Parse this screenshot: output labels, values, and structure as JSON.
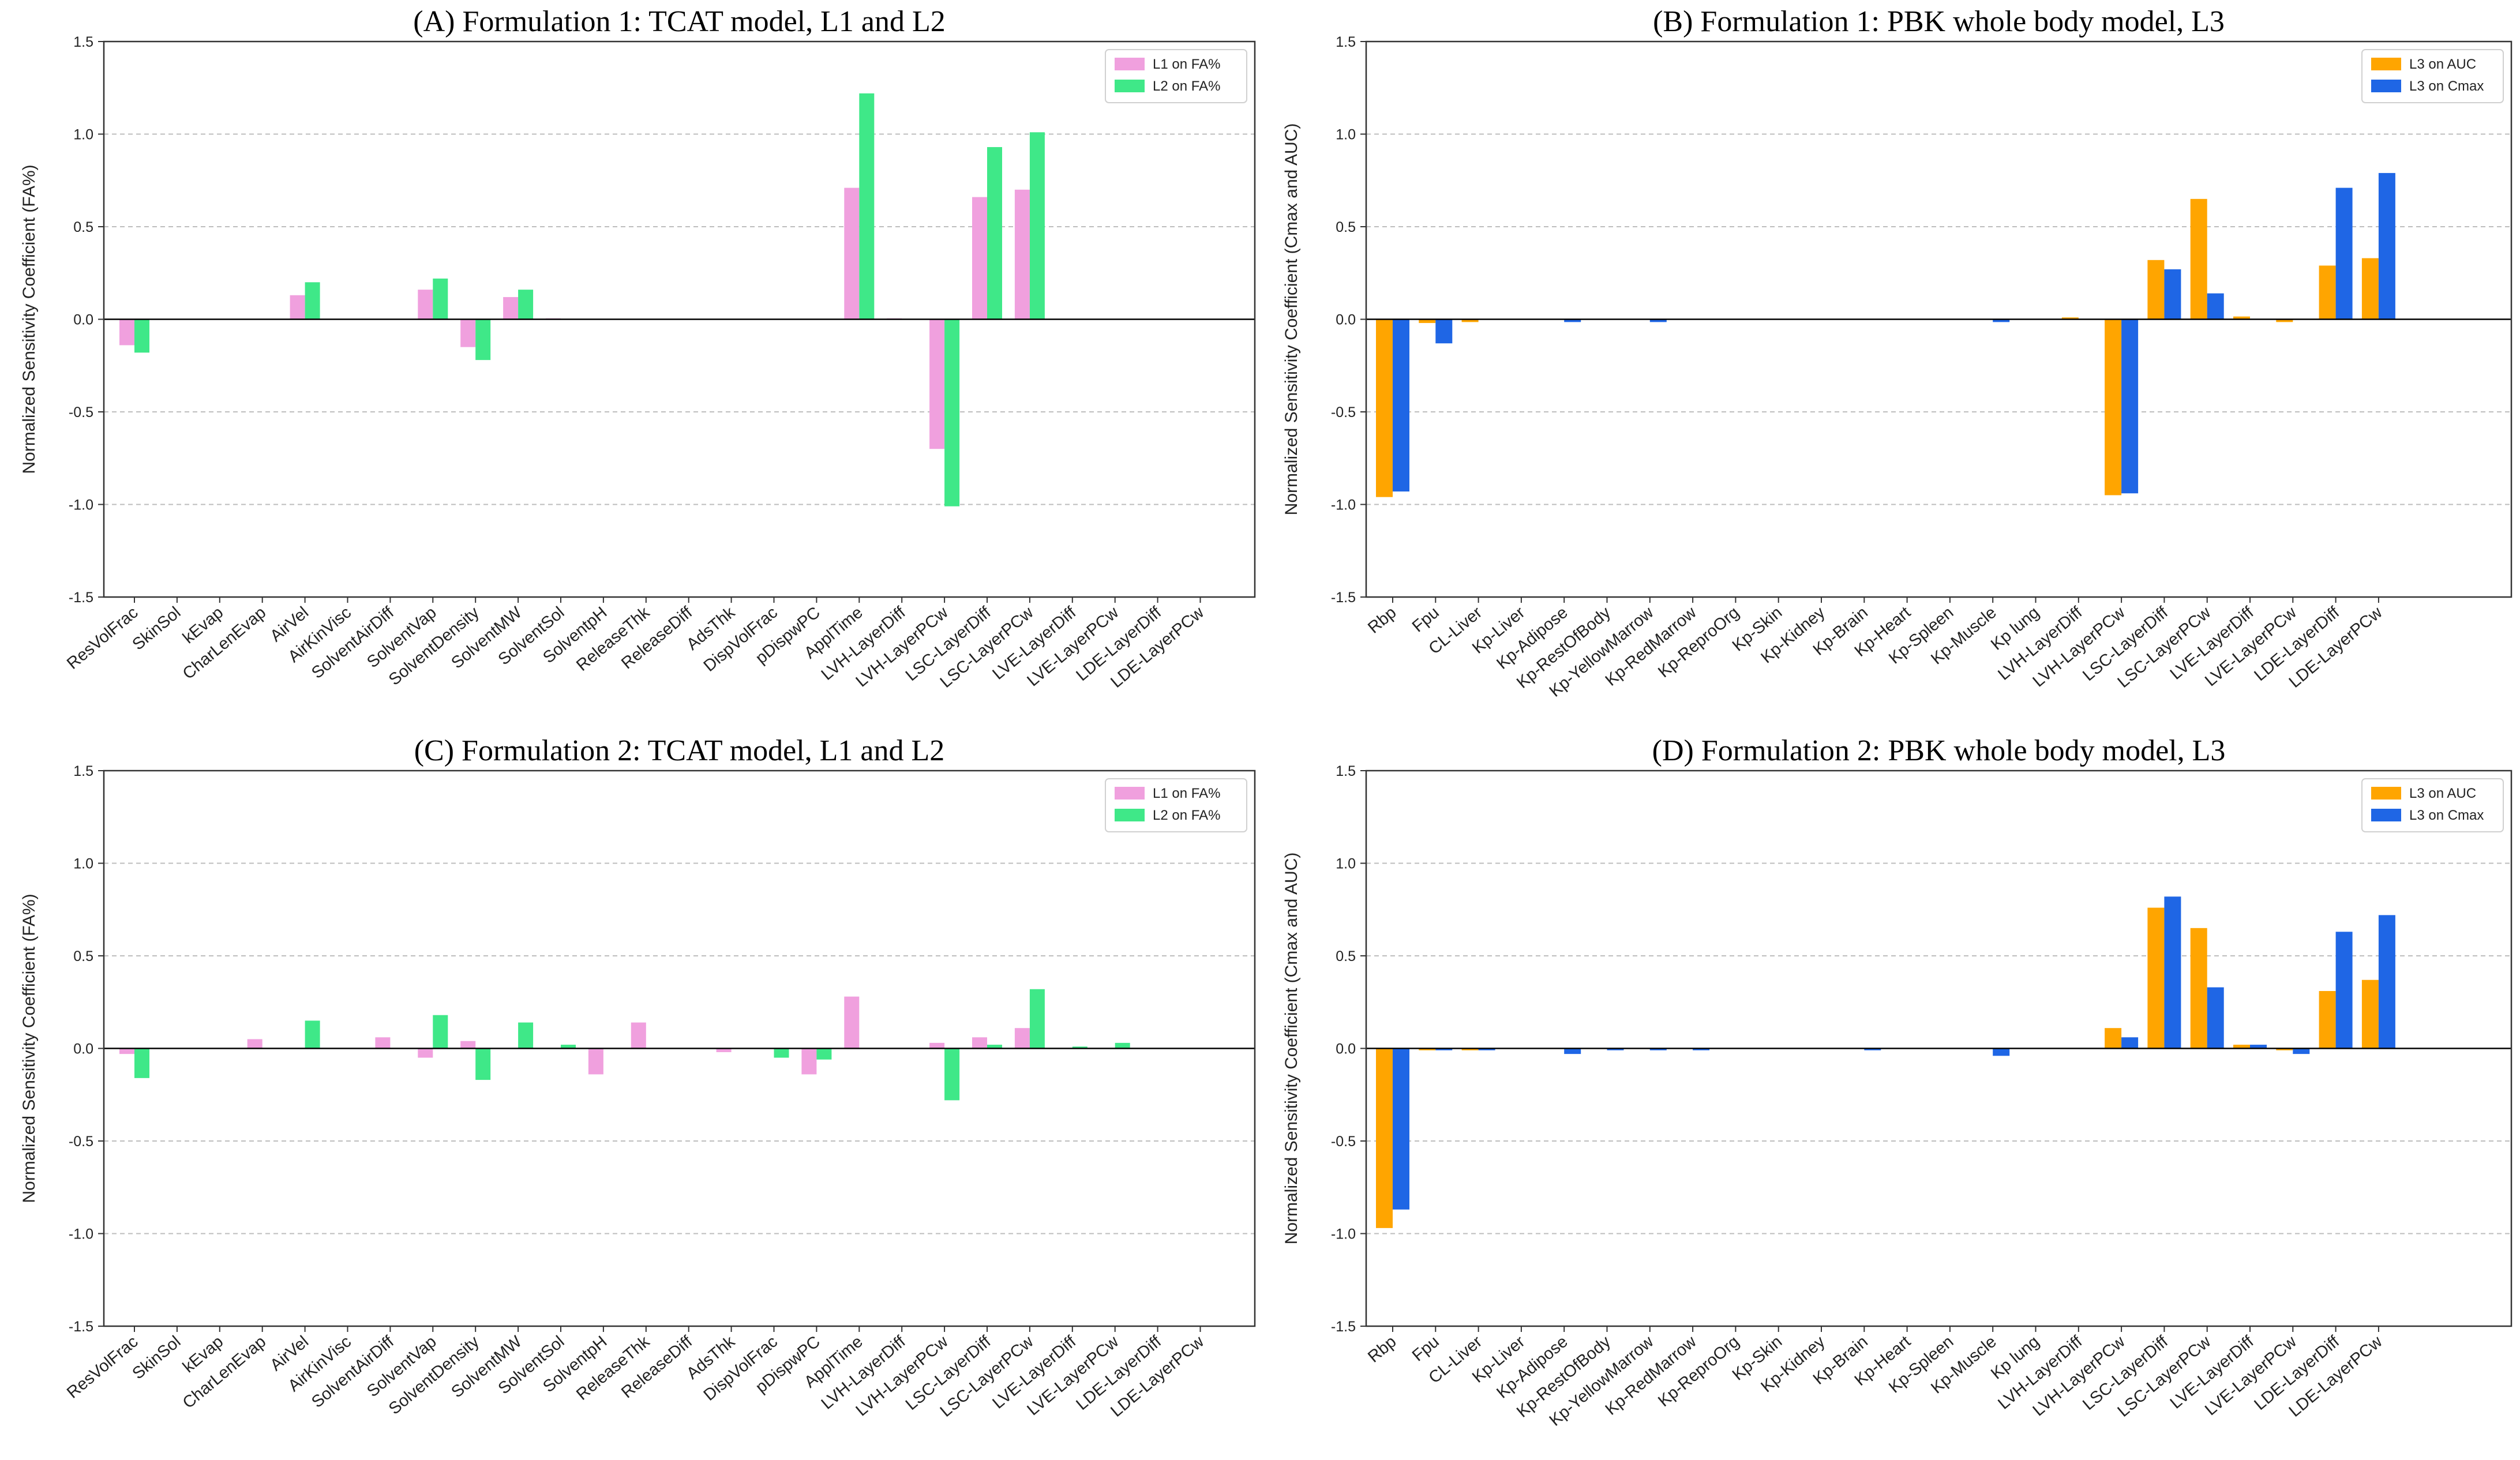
{
  "colors": {
    "l1": "#f0a0de",
    "l2": "#3fe888",
    "auc": "#ffa500",
    "cmax": "#1f66e5",
    "grid": "#bdbdbd",
    "zero": "#000000"
  },
  "chart_data": [
    {
      "type": "bar",
      "title": "(A) Formulation 1: TCAT model, L1 and L2",
      "ylabel": "Normalized Sensitivity Coefficient (FA%)",
      "ylim": [
        -1.5,
        1.5
      ],
      "yticks": [
        "-1.5",
        "-1.0",
        "-0.5",
        "0.0",
        "0.5",
        "1.0",
        "1.5"
      ],
      "legend_position": "top-right",
      "categories": [
        "ResVolFrac",
        "SkinSol",
        "kEvap",
        "CharLenEvap",
        "AirVel",
        "AirKinVisc",
        "SolventAirDiff",
        "SolventVap",
        "SolventDensity",
        "SolventMW",
        "SolventSol",
        "SolventpH",
        "ReleaseThk",
        "ReleaseDiff",
        "AdsThk",
        "DispVolFrac",
        "pDispwPC",
        "ApplTime",
        "LVH-LayerDiff",
        "LVH-LayerPCw",
        "LSC-LayerDiff",
        "LSC-LayerPCw",
        "LVE-LayerDiff",
        "LVE-LayerPCw",
        "LDE-LayerDiff",
        "LDE-LayerPCw"
      ],
      "series": [
        {
          "name": "L1 on FA%",
          "color_key": "l1",
          "values": [
            -0.14,
            0,
            0,
            0,
            0.13,
            0,
            0,
            0.16,
            -0.15,
            0.12,
            0.005,
            0,
            0,
            0,
            0,
            0,
            0,
            0.71,
            0.005,
            -0.7,
            0.66,
            0.7,
            0,
            0,
            0,
            0
          ]
        },
        {
          "name": "L2 on FA%",
          "color_key": "l2",
          "values": [
            -0.18,
            0,
            0,
            0,
            0.2,
            0,
            0,
            0.22,
            -0.22,
            0.16,
            0,
            0,
            0,
            0,
            0,
            0,
            0,
            1.22,
            0,
            -1.01,
            0.93,
            1.01,
            0,
            0,
            0,
            0
          ]
        }
      ]
    },
    {
      "type": "bar",
      "title": "(B) Formulation 1: PBK whole body model, L3",
      "ylabel": "Normalized Sensitivity Coefficient (Cmax and AUC)",
      "ylim": [
        -1.5,
        1.5
      ],
      "yticks": [
        "-1.5",
        "-1.0",
        "-0.5",
        "0.0",
        "0.5",
        "1.0",
        "1.5"
      ],
      "legend_position": "top-right",
      "categories": [
        "Rbp",
        "Fpu",
        "CL-Liver",
        "Kp-Liver",
        "Kp-Adipose",
        "Kp-RestOfBody",
        "Kp-YellowMarrow",
        "Kp-RedMarrow",
        "Kp-ReproOrg",
        "Kp-Skin",
        "Kp-Kidney",
        "Kp-Brain",
        "Kp-Heart",
        "Kp-Spleen",
        "Kp-Muscle",
        "Kp lung",
        "LVH-LayerDiff",
        "LVH-LayerPCw",
        "LSC-LayerDiff",
        "LSC-LayerPCw",
        "LVE-LayerDiff",
        "LVE-LayerPCw",
        "LDE-LayerDiff",
        "LDE-LayerPCw"
      ],
      "series": [
        {
          "name": "L3 on AUC",
          "color_key": "auc",
          "values": [
            -0.96,
            -0.02,
            -0.015,
            0,
            0,
            0,
            0,
            0,
            0,
            0,
            0,
            0,
            0,
            0,
            0,
            0,
            0.01,
            -0.95,
            0.32,
            0.65,
            0.015,
            -0.015,
            0.29,
            0.33
          ]
        },
        {
          "name": "L3 on Cmax",
          "color_key": "cmax",
          "values": [
            -0.93,
            -0.13,
            0,
            0,
            -0.015,
            0,
            -0.015,
            0,
            0,
            0,
            0,
            0,
            0,
            0,
            -0.015,
            0,
            0,
            -0.94,
            0.27,
            0.14,
            0,
            0,
            0.71,
            0.79
          ]
        }
      ]
    },
    {
      "type": "bar",
      "title": "(C) Formulation 2: TCAT model, L1 and L2",
      "ylabel": "Normalized Sensitivity Coefficient (FA%)",
      "ylim": [
        -1.5,
        1.5
      ],
      "yticks": [
        "-1.5",
        "-1.0",
        "-0.5",
        "0.0",
        "0.5",
        "1.0",
        "1.5"
      ],
      "legend_position": "top-right",
      "categories": [
        "ResVolFrac",
        "SkinSol",
        "kEvap",
        "CharLenEvap",
        "AirVel",
        "AirKinVisc",
        "SolventAirDiff",
        "SolventVap",
        "SolventDensity",
        "SolventMW",
        "SolventSol",
        "SolventpH",
        "ReleaseThk",
        "ReleaseDiff",
        "AdsThk",
        "DispVolFrac",
        "pDispwPC",
        "ApplTime",
        "LVH-LayerDiff",
        "LVH-LayerPCw",
        "LSC-LayerDiff",
        "LSC-LayerPCw",
        "LVE-LayerDiff",
        "LVE-LayerPCw",
        "LDE-LayerDiff",
        "LDE-LayerPCw"
      ],
      "series": [
        {
          "name": "L1 on FA%",
          "color_key": "l1",
          "values": [
            -0.03,
            0,
            0,
            0.05,
            0,
            0,
            0.06,
            -0.05,
            0.04,
            0,
            0,
            -0.14,
            0.14,
            0,
            -0.02,
            0,
            -0.14,
            0.28,
            0,
            0.03,
            0.06,
            0.11,
            0,
            0,
            0,
            0
          ]
        },
        {
          "name": "L2 on FA%",
          "color_key": "l2",
          "values": [
            -0.16,
            0,
            0,
            0,
            0.15,
            0,
            0,
            0.18,
            -0.17,
            0.14,
            0.02,
            0,
            0,
            0,
            0,
            -0.05,
            -0.06,
            0,
            0,
            -0.28,
            0.02,
            0.32,
            0.01,
            0.03,
            0,
            0
          ]
        }
      ]
    },
    {
      "type": "bar",
      "title": "(D) Formulation 2: PBK whole body model, L3",
      "ylabel": "Normalized Sensitivity Coefficient (Cmax and AUC)",
      "ylim": [
        -1.5,
        1.5
      ],
      "yticks": [
        "-1.5",
        "-1.0",
        "-0.5",
        "0.0",
        "0.5",
        "1.0",
        "1.5"
      ],
      "legend_position": "top-right",
      "categories": [
        "Rbp",
        "Fpu",
        "CL-Liver",
        "Kp-Liver",
        "Kp-Adipose",
        "Kp-RestOfBody",
        "Kp-YellowMarrow",
        "Kp-RedMarrow",
        "Kp-ReproOrg",
        "Kp-Skin",
        "Kp-Kidney",
        "Kp-Brain",
        "Kp-Heart",
        "Kp-Spleen",
        "Kp-Muscle",
        "Kp lung",
        "LVH-LayerDiff",
        "LVH-LayerPCw",
        "LSC-LayerDiff",
        "LSC-LayerPCw",
        "LVE-LayerDiff",
        "LVE-LayerPCw",
        "LDE-LayerDiff",
        "LDE-LayerPCw"
      ],
      "series": [
        {
          "name": "L3 on AUC",
          "color_key": "auc",
          "values": [
            -0.97,
            -0.01,
            -0.01,
            0,
            0,
            0,
            0,
            0,
            0,
            0,
            0,
            0,
            0,
            0,
            0,
            0,
            0,
            0.11,
            0.76,
            0.65,
            0.02,
            -0.01,
            0.31,
            0.37
          ]
        },
        {
          "name": "L3 on Cmax",
          "color_key": "cmax",
          "values": [
            -0.87,
            -0.01,
            -0.01,
            0,
            -0.03,
            -0.01,
            -0.01,
            -0.01,
            0,
            0,
            0,
            -0.01,
            0,
            0,
            -0.04,
            0,
            0,
            0.06,
            0.82,
            0.33,
            0.02,
            -0.03,
            0.63,
            0.72
          ]
        }
      ]
    }
  ]
}
